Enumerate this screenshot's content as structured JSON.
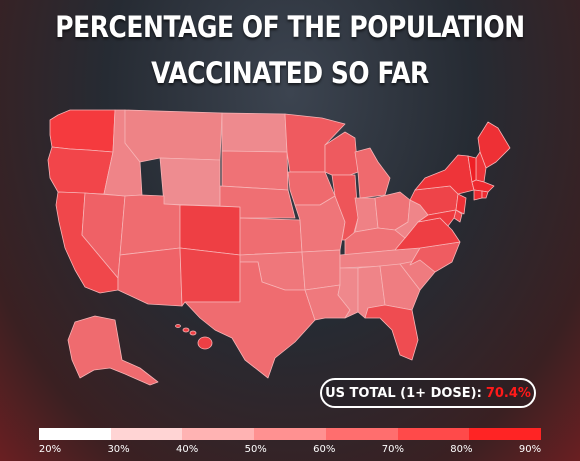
{
  "title_line1": "PERCENTAGE OF THE POPULATION",
  "title_line2": "VACCINATED SO FAR",
  "badge": {
    "label": "US TOTAL (1+ DOSE):",
    "value": "70.4%"
  },
  "legend": {
    "ticks": [
      "20%",
      "30%",
      "40%",
      "50%",
      "60%",
      "70%",
      "80%",
      "90%"
    ],
    "colors": [
      "#ffffff",
      "#ffd4d4",
      "#ffb3b3",
      "#ff9191",
      "#ff6e6e",
      "#ff4a4a",
      "#ff2424"
    ]
  },
  "state_colors": {
    "WA": "#f53a3e",
    "OR": "#f2454a",
    "CA": "#f0474b",
    "NV": "#ef6166",
    "ID": "#ef8488",
    "MT": "#ee8386",
    "WY": "#ee8c90",
    "UT": "#ef6c70",
    "AZ": "#ef6368",
    "CO": "#ee3f44",
    "NM": "#ee4449",
    "ND": "#ee8a8e",
    "SD": "#ef7276",
    "NE": "#ef6f73",
    "KS": "#ef6d71",
    "OK": "#ef777b",
    "TX": "#ef6c70",
    "MN": "#ef5a5f",
    "IA": "#ef6a6e",
    "MO": "#ef7579",
    "AR": "#ef7b7f",
    "LA": "#ef797d",
    "WI": "#ee5a5f",
    "IL": "#ee5559",
    "MI": "#ef6a6e",
    "IN": "#ef8185",
    "OH": "#ef7377",
    "KY": "#ef7276",
    "TN": "#ef8185",
    "MS": "#ef888c",
    "AL": "#ef8488",
    "GA": "#ef7d81",
    "FL": "#ef4c51",
    "SC": "#ef7b7f",
    "NC": "#ef5c61",
    "VA": "#ee3e43",
    "WV": "#ef8589",
    "PA": "#ee4449",
    "NY": "#ee3439",
    "ME": "#ee3035",
    "NH": "#ee3439",
    "VT": "#ee1f25",
    "MA": "#ee2a30",
    "CT": "#ee2a30",
    "RI": "#ee2a30",
    "NJ": "#ee3036",
    "DE": "#ee4449",
    "MD": "#ee3a3f",
    "AK": "#ef6b6f",
    "HI": "#ee3f44"
  }
}
